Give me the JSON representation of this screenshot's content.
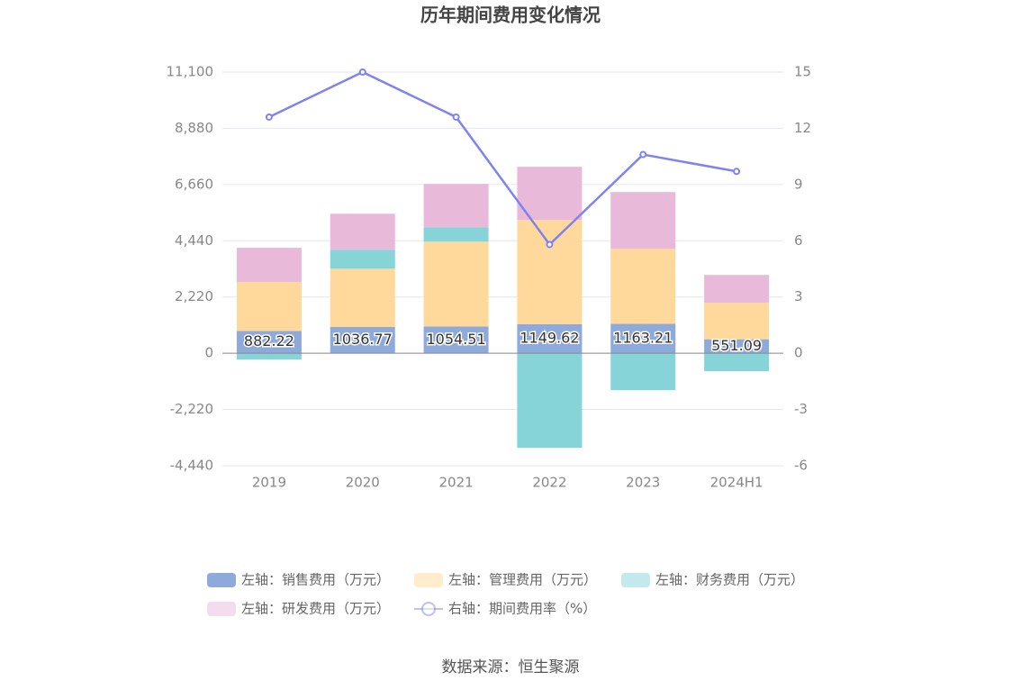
{
  "chart_data": {
    "type": "bar",
    "title": "历年期间费用变化情况",
    "categories": [
      "2019",
      "2020",
      "2021",
      "2022",
      "2023",
      "2024H1"
    ],
    "series": [
      {
        "name": "左轴：销售费用（万元）",
        "color": "#8eaadb",
        "values": [
          882.22,
          1036.77,
          1054.51,
          1149.62,
          1163.21,
          551.09
        ],
        "show_values": true
      },
      {
        "name": "左轴：管理费用（万元）",
        "color": "#ffd99b",
        "values": [
          1930,
          2300,
          3350,
          4110,
          2960,
          1440
        ]
      },
      {
        "name": "左轴：财务费用（万元）",
        "color": "#86d4d8",
        "values": [
          -250,
          750,
          570,
          -3734,
          -1458,
          -711
        ]
      },
      {
        "name": "左轴：研发费用（万元）",
        "color": "#e8b9d9",
        "values": [
          1350,
          1420,
          1710,
          2100,
          2240,
          1100
        ]
      },
      {
        "name": "右轴：期间费用率（%）",
        "color": "#7f83f0",
        "type": "line",
        "axis": "y2",
        "values": [
          12.6,
          15.0,
          12.6,
          5.8,
          10.6,
          9.7
        ]
      }
    ],
    "ylim": [
      -4440,
      11100
    ],
    "yticks": [
      {
        "value": -4440,
        "label": "-4,440"
      },
      {
        "value": -2220,
        "label": "-2,220"
      },
      0,
      {
        "value": 2220,
        "label": "2,220"
      },
      {
        "value": 4440,
        "label": "4,440"
      },
      {
        "value": 6660,
        "label": "6,660"
      },
      {
        "value": 8880,
        "label": "8,880"
      },
      {
        "value": 11100,
        "label": "11,100"
      }
    ],
    "y2lim": [
      -6,
      15
    ],
    "y2ticks": [
      -6,
      -3,
      0,
      3,
      6,
      9,
      12,
      15
    ],
    "grid": true,
    "legend": "bottom",
    "source": "数据来源：恒生聚源"
  }
}
